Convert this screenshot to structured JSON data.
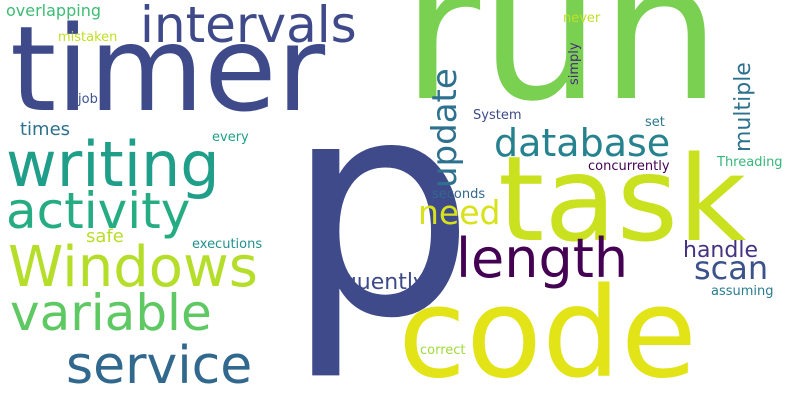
{
  "words": [
    {
      "text": "run",
      "color": "#7ad151"
    },
    {
      "text": "p",
      "color": "#3e4a89"
    },
    {
      "text": "timer",
      "color": "#3e4a89"
    },
    {
      "text": "code",
      "color": "#e2e418"
    },
    {
      "text": "task",
      "color": "#cae11f"
    },
    {
      "text": "intervals",
      "color": "#3e4a89"
    },
    {
      "text": "writing",
      "color": "#1f9e89"
    },
    {
      "text": "Windows",
      "color": "#b5de2b"
    },
    {
      "text": "activity",
      "color": "#25ac82"
    },
    {
      "text": "variable",
      "color": "#5ec962"
    },
    {
      "text": "service",
      "color": "#31688e"
    },
    {
      "text": "length",
      "color": "#440154"
    },
    {
      "text": "database",
      "color": "#26828e"
    },
    {
      "text": "update",
      "color": "#2d718e"
    },
    {
      "text": "need",
      "color": "#d8e219"
    },
    {
      "text": "scan",
      "color": "#3b528b"
    },
    {
      "text": "frequently",
      "color": "#3e4a89"
    },
    {
      "text": "handle",
      "color": "#46337f"
    },
    {
      "text": "multiple",
      "color": "#2d718e"
    },
    {
      "text": "times",
      "color": "#2c728e"
    },
    {
      "text": "safe",
      "color": "#b8de29"
    },
    {
      "text": "overlapping",
      "color": "#3dbc74"
    },
    {
      "text": "mistaken",
      "color": "#c2df23"
    },
    {
      "text": "job",
      "color": "#3b528b"
    },
    {
      "text": "every",
      "color": "#1fa088"
    },
    {
      "text": "executions",
      "color": "#21918c"
    },
    {
      "text": "System",
      "color": "#3e4a89"
    },
    {
      "text": "set",
      "color": "#29798e"
    },
    {
      "text": "concurrently",
      "color": "#440154"
    },
    {
      "text": "Threading",
      "color": "#35b779"
    },
    {
      "text": "seconds",
      "color": "#31688e"
    },
    {
      "text": "assuming",
      "color": "#287c8e"
    },
    {
      "text": "correct",
      "color": "#a0da39"
    },
    {
      "text": "never",
      "color": "#c0df25"
    },
    {
      "text": "simply",
      "color": "#472c7a"
    }
  ]
}
